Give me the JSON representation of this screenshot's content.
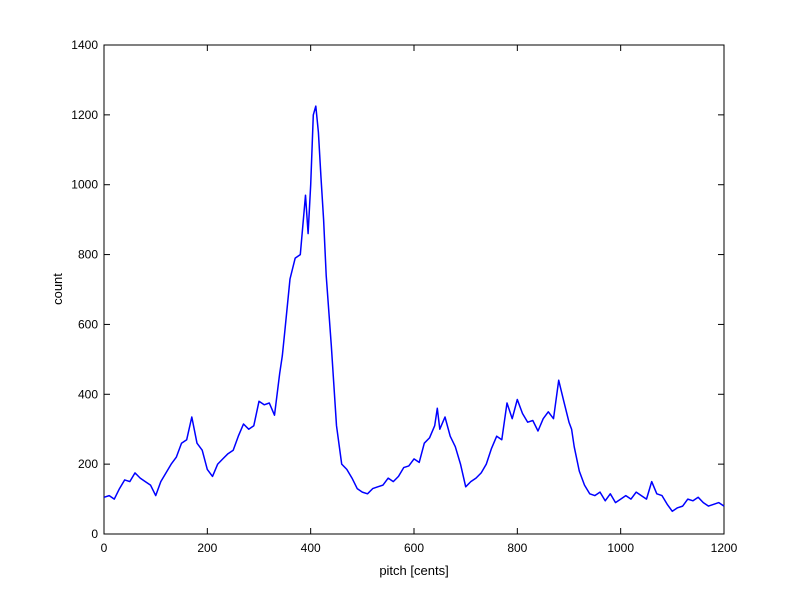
{
  "chart_data": {
    "type": "line",
    "title": "",
    "xlabel": "pitch [cents]",
    "ylabel": "count",
    "xlim": [
      0,
      1200
    ],
    "ylim": [
      0,
      1400
    ],
    "xticks": [
      0,
      200,
      400,
      600,
      800,
      1000,
      1200
    ],
    "yticks": [
      0,
      200,
      400,
      600,
      800,
      1000,
      1200,
      1400
    ],
    "grid": false,
    "legend": "none",
    "series": [
      {
        "color": "#0000ff",
        "x": [
          0,
          10,
          20,
          30,
          40,
          50,
          60,
          70,
          80,
          90,
          100,
          110,
          120,
          130,
          140,
          150,
          160,
          170,
          180,
          190,
          200,
          210,
          220,
          230,
          240,
          250,
          260,
          270,
          280,
          290,
          300,
          310,
          320,
          330,
          340,
          345,
          350,
          360,
          370,
          380,
          390,
          395,
          400,
          405,
          410,
          415,
          420,
          425,
          430,
          440,
          450,
          460,
          470,
          480,
          490,
          500,
          510,
          520,
          530,
          540,
          550,
          560,
          570,
          580,
          590,
          600,
          610,
          620,
          630,
          640,
          645,
          650,
          660,
          670,
          680,
          690,
          700,
          710,
          720,
          730,
          740,
          750,
          760,
          770,
          780,
          790,
          800,
          810,
          820,
          830,
          840,
          850,
          860,
          870,
          880,
          890,
          900,
          905,
          910,
          920,
          930,
          940,
          950,
          960,
          970,
          980,
          990,
          1000,
          1010,
          1020,
          1030,
          1040,
          1050,
          1060,
          1070,
          1080,
          1090,
          1100,
          1110,
          1120,
          1130,
          1140,
          1150,
          1160,
          1170,
          1180,
          1190,
          1200
        ],
        "y": [
          105,
          110,
          100,
          130,
          155,
          150,
          175,
          160,
          150,
          140,
          110,
          150,
          175,
          200,
          220,
          260,
          270,
          335,
          260,
          240,
          185,
          165,
          200,
          215,
          230,
          240,
          280,
          315,
          300,
          310,
          380,
          370,
          375,
          340,
          460,
          510,
          580,
          730,
          790,
          800,
          970,
          860,
          1000,
          1200,
          1225,
          1150,
          1020,
          900,
          740,
          540,
          310,
          200,
          185,
          160,
          130,
          120,
          115,
          130,
          135,
          140,
          160,
          150,
          165,
          190,
          195,
          215,
          205,
          260,
          275,
          310,
          360,
          300,
          335,
          280,
          250,
          200,
          135,
          150,
          160,
          175,
          200,
          245,
          280,
          270,
          375,
          330,
          385,
          345,
          320,
          325,
          295,
          330,
          350,
          330,
          440,
          380,
          320,
          300,
          250,
          180,
          140,
          115,
          110,
          120,
          95,
          115,
          90,
          100,
          110,
          100,
          120,
          110,
          100,
          150,
          115,
          110,
          85,
          65,
          75,
          80,
          100,
          95,
          105,
          90,
          80,
          85,
          90,
          80
        ]
      }
    ]
  }
}
